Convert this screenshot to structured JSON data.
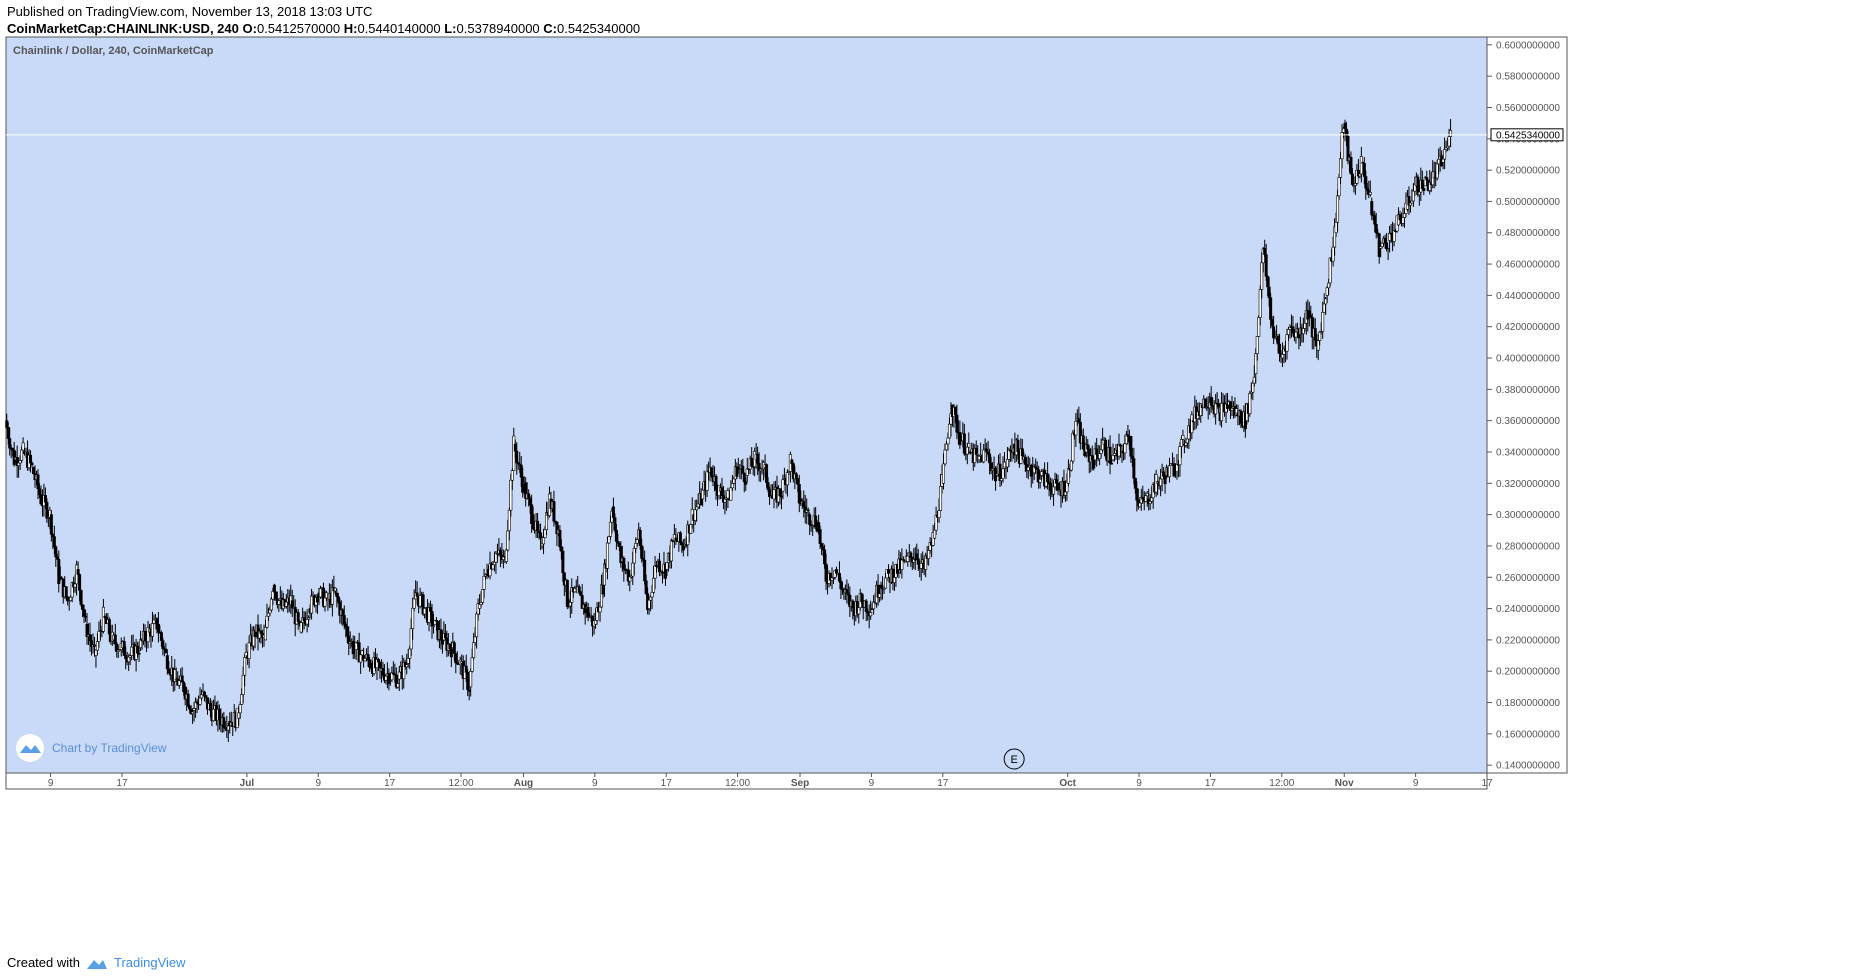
{
  "header": {
    "published": "Published on TradingView.com, November 13, 2018 13:03 UTC",
    "symbol": "CoinMarketCap:CHAINLINK:USD, 240",
    "o_label": "O:",
    "o_value": "0.5412570000",
    "h_label": "H:",
    "h_value": "0.5440140000",
    "l_label": "L:",
    "l_value": "0.5378940000",
    "c_label": "C:",
    "c_value": "0.5425340000"
  },
  "footer": {
    "created_with": "Created with",
    "brand": "TradingView"
  },
  "chart_data": {
    "type": "candlestick",
    "title": "Chainlink / Dollar, 240, CoinMarketCap",
    "watermark": "Chart by TradingView",
    "event_marker": "E",
    "colors": {
      "background": "#c9daf8",
      "candle": "#000000",
      "axis_text": "#555555",
      "border": "#555555",
      "price_line": "#ffffff"
    },
    "ylim": [
      0.135,
      0.605
    ],
    "y_ticks": [
      "0.1400000000",
      "0.1600000000",
      "0.1800000000",
      "0.2000000000",
      "0.2200000000",
      "0.2400000000",
      "0.2600000000",
      "0.2800000000",
      "0.3000000000",
      "0.3200000000",
      "0.3400000000",
      "0.3600000000",
      "0.3800000000",
      "0.4000000000",
      "0.4200000000",
      "0.4400000000",
      "0.4600000000",
      "0.4800000000",
      "0.5000000000",
      "0.5200000000",
      "0.5400000000",
      "0.5600000000",
      "0.5800000000",
      "0.6000000000"
    ],
    "last_price": 0.542534,
    "last_price_label": "0.5425340000",
    "x_range": [
      "2018-06-04",
      "2018-11-17"
    ],
    "x_ticks": [
      {
        "date": "2018-06-09",
        "label": "9",
        "bold": false
      },
      {
        "date": "2018-06-17",
        "label": "17",
        "bold": false
      },
      {
        "date": "2018-07-01",
        "label": "Jul",
        "bold": true
      },
      {
        "date": "2018-07-09",
        "label": "9",
        "bold": false
      },
      {
        "date": "2018-07-17",
        "label": "17",
        "bold": false
      },
      {
        "date": "2018-07-25",
        "label": "12:00",
        "bold": false
      },
      {
        "date": "2018-08-01",
        "label": "Aug",
        "bold": true
      },
      {
        "date": "2018-08-09",
        "label": "9",
        "bold": false
      },
      {
        "date": "2018-08-17",
        "label": "17",
        "bold": false
      },
      {
        "date": "2018-08-25",
        "label": "12:00",
        "bold": false
      },
      {
        "date": "2018-09-01",
        "label": "Sep",
        "bold": true
      },
      {
        "date": "2018-09-09",
        "label": "9",
        "bold": false
      },
      {
        "date": "2018-09-17",
        "label": "17",
        "bold": false
      },
      {
        "date": "2018-10-01",
        "label": "Oct",
        "bold": true
      },
      {
        "date": "2018-10-09",
        "label": "9",
        "bold": false
      },
      {
        "date": "2018-10-17",
        "label": "17",
        "bold": false
      },
      {
        "date": "2018-10-25",
        "label": "12:00",
        "bold": false
      },
      {
        "date": "2018-11-01",
        "label": "Nov",
        "bold": true
      },
      {
        "date": "2018-11-09",
        "label": "9",
        "bold": false
      },
      {
        "date": "2018-11-17",
        "label": "17",
        "bold": false
      }
    ],
    "event_marker_date": "2018-09-25",
    "series": [
      {
        "date": "2018-06-04",
        "close": 0.36
      },
      {
        "date": "2018-06-05",
        "close": 0.335
      },
      {
        "date": "2018-06-06",
        "close": 0.34
      },
      {
        "date": "2018-06-07",
        "close": 0.33
      },
      {
        "date": "2018-06-08",
        "close": 0.31
      },
      {
        "date": "2018-06-09",
        "close": 0.3
      },
      {
        "date": "2018-06-10",
        "close": 0.26
      },
      {
        "date": "2018-06-11",
        "close": 0.245
      },
      {
        "date": "2018-06-12",
        "close": 0.265
      },
      {
        "date": "2018-06-13",
        "close": 0.23
      },
      {
        "date": "2018-06-14",
        "close": 0.21
      },
      {
        "date": "2018-06-15",
        "close": 0.235
      },
      {
        "date": "2018-06-16",
        "close": 0.22
      },
      {
        "date": "2018-06-17",
        "close": 0.215
      },
      {
        "date": "2018-06-18",
        "close": 0.21
      },
      {
        "date": "2018-06-19",
        "close": 0.215
      },
      {
        "date": "2018-06-20",
        "close": 0.225
      },
      {
        "date": "2018-06-21",
        "close": 0.23
      },
      {
        "date": "2018-06-22",
        "close": 0.21
      },
      {
        "date": "2018-06-23",
        "close": 0.195
      },
      {
        "date": "2018-06-24",
        "close": 0.19
      },
      {
        "date": "2018-06-25",
        "close": 0.175
      },
      {
        "date": "2018-06-26",
        "close": 0.185
      },
      {
        "date": "2018-06-27",
        "close": 0.175
      },
      {
        "date": "2018-06-28",
        "close": 0.17
      },
      {
        "date": "2018-06-29",
        "close": 0.168
      },
      {
        "date": "2018-06-30",
        "close": 0.17
      },
      {
        "date": "2018-07-01",
        "close": 0.21
      },
      {
        "date": "2018-07-02",
        "close": 0.225
      },
      {
        "date": "2018-07-03",
        "close": 0.22
      },
      {
        "date": "2018-07-04",
        "close": 0.255
      },
      {
        "date": "2018-07-05",
        "close": 0.24
      },
      {
        "date": "2018-07-06",
        "close": 0.245
      },
      {
        "date": "2018-07-07",
        "close": 0.225
      },
      {
        "date": "2018-07-08",
        "close": 0.24
      },
      {
        "date": "2018-07-09",
        "close": 0.25
      },
      {
        "date": "2018-07-10",
        "close": 0.245
      },
      {
        "date": "2018-07-11",
        "close": 0.25
      },
      {
        "date": "2018-07-12",
        "close": 0.23
      },
      {
        "date": "2018-07-13",
        "close": 0.215
      },
      {
        "date": "2018-07-14",
        "close": 0.21
      },
      {
        "date": "2018-07-15",
        "close": 0.205
      },
      {
        "date": "2018-07-16",
        "close": 0.2
      },
      {
        "date": "2018-07-17",
        "close": 0.198
      },
      {
        "date": "2018-07-18",
        "close": 0.195
      },
      {
        "date": "2018-07-19",
        "close": 0.205
      },
      {
        "date": "2018-07-20",
        "close": 0.25
      },
      {
        "date": "2018-07-21",
        "close": 0.24
      },
      {
        "date": "2018-07-22",
        "close": 0.23
      },
      {
        "date": "2018-07-23",
        "close": 0.22
      },
      {
        "date": "2018-07-24",
        "close": 0.215
      },
      {
        "date": "2018-07-25",
        "close": 0.205
      },
      {
        "date": "2018-07-26",
        "close": 0.19
      },
      {
        "date": "2018-07-27",
        "close": 0.24
      },
      {
        "date": "2018-07-28",
        "close": 0.265
      },
      {
        "date": "2018-07-29",
        "close": 0.275
      },
      {
        "date": "2018-07-30",
        "close": 0.27
      },
      {
        "date": "2018-07-31",
        "close": 0.345
      },
      {
        "date": "2018-08-01",
        "close": 0.32
      },
      {
        "date": "2018-08-02",
        "close": 0.3
      },
      {
        "date": "2018-08-03",
        "close": 0.28
      },
      {
        "date": "2018-08-04",
        "close": 0.31
      },
      {
        "date": "2018-08-05",
        "close": 0.29
      },
      {
        "date": "2018-08-06",
        "close": 0.245
      },
      {
        "date": "2018-08-07",
        "close": 0.25
      },
      {
        "date": "2018-08-08",
        "close": 0.24
      },
      {
        "date": "2018-08-09",
        "close": 0.23
      },
      {
        "date": "2018-08-10",
        "close": 0.255
      },
      {
        "date": "2018-08-11",
        "close": 0.305
      },
      {
        "date": "2018-08-12",
        "close": 0.27
      },
      {
        "date": "2018-08-13",
        "close": 0.26
      },
      {
        "date": "2018-08-14",
        "close": 0.29
      },
      {
        "date": "2018-08-15",
        "close": 0.24
      },
      {
        "date": "2018-08-16",
        "close": 0.27
      },
      {
        "date": "2018-08-17",
        "close": 0.265
      },
      {
        "date": "2018-08-18",
        "close": 0.285
      },
      {
        "date": "2018-08-19",
        "close": 0.28
      },
      {
        "date": "2018-08-20",
        "close": 0.3
      },
      {
        "date": "2018-08-21",
        "close": 0.31
      },
      {
        "date": "2018-08-22",
        "close": 0.33
      },
      {
        "date": "2018-08-23",
        "close": 0.315
      },
      {
        "date": "2018-08-24",
        "close": 0.31
      },
      {
        "date": "2018-08-25",
        "close": 0.33
      },
      {
        "date": "2018-08-26",
        "close": 0.325
      },
      {
        "date": "2018-08-27",
        "close": 0.335
      },
      {
        "date": "2018-08-28",
        "close": 0.33
      },
      {
        "date": "2018-08-29",
        "close": 0.31
      },
      {
        "date": "2018-08-30",
        "close": 0.315
      },
      {
        "date": "2018-08-31",
        "close": 0.335
      },
      {
        "date": "2018-09-01",
        "close": 0.31
      },
      {
        "date": "2018-09-02",
        "close": 0.3
      },
      {
        "date": "2018-09-03",
        "close": 0.295
      },
      {
        "date": "2018-09-04",
        "close": 0.26
      },
      {
        "date": "2018-09-05",
        "close": 0.265
      },
      {
        "date": "2018-09-06",
        "close": 0.25
      },
      {
        "date": "2018-09-07",
        "close": 0.24
      },
      {
        "date": "2018-09-08",
        "close": 0.245
      },
      {
        "date": "2018-09-09",
        "close": 0.24
      },
      {
        "date": "2018-09-10",
        "close": 0.255
      },
      {
        "date": "2018-09-11",
        "close": 0.26
      },
      {
        "date": "2018-09-12",
        "close": 0.265
      },
      {
        "date": "2018-09-13",
        "close": 0.27
      },
      {
        "date": "2018-09-14",
        "close": 0.275
      },
      {
        "date": "2018-09-15",
        "close": 0.265
      },
      {
        "date": "2018-09-16",
        "close": 0.285
      },
      {
        "date": "2018-09-17",
        "close": 0.32
      },
      {
        "date": "2018-09-18",
        "close": 0.37
      },
      {
        "date": "2018-09-19",
        "close": 0.35
      },
      {
        "date": "2018-09-20",
        "close": 0.34
      },
      {
        "date": "2018-09-21",
        "close": 0.335
      },
      {
        "date": "2018-09-22",
        "close": 0.34
      },
      {
        "date": "2018-09-23",
        "close": 0.325
      },
      {
        "date": "2018-09-24",
        "close": 0.33
      },
      {
        "date": "2018-09-25",
        "close": 0.345
      },
      {
        "date": "2018-09-26",
        "close": 0.335
      },
      {
        "date": "2018-09-27",
        "close": 0.33
      },
      {
        "date": "2018-09-28",
        "close": 0.325
      },
      {
        "date": "2018-09-29",
        "close": 0.32
      },
      {
        "date": "2018-09-30",
        "close": 0.315
      },
      {
        "date": "2018-10-01",
        "close": 0.32
      },
      {
        "date": "2018-10-02",
        "close": 0.36
      },
      {
        "date": "2018-10-03",
        "close": 0.34
      },
      {
        "date": "2018-10-04",
        "close": 0.335
      },
      {
        "date": "2018-10-05",
        "close": 0.345
      },
      {
        "date": "2018-10-06",
        "close": 0.335
      },
      {
        "date": "2018-10-07",
        "close": 0.34
      },
      {
        "date": "2018-10-08",
        "close": 0.35
      },
      {
        "date": "2018-10-09",
        "close": 0.305
      },
      {
        "date": "2018-10-10",
        "close": 0.31
      },
      {
        "date": "2018-10-11",
        "close": 0.32
      },
      {
        "date": "2018-10-12",
        "close": 0.325
      },
      {
        "date": "2018-10-13",
        "close": 0.33
      },
      {
        "date": "2018-10-14",
        "close": 0.345
      },
      {
        "date": "2018-10-15",
        "close": 0.36
      },
      {
        "date": "2018-10-16",
        "close": 0.37
      },
      {
        "date": "2018-10-17",
        "close": 0.375
      },
      {
        "date": "2018-10-18",
        "close": 0.365
      },
      {
        "date": "2018-10-19",
        "close": 0.37
      },
      {
        "date": "2018-10-20",
        "close": 0.365
      },
      {
        "date": "2018-10-21",
        "close": 0.36
      },
      {
        "date": "2018-10-22",
        "close": 0.39
      },
      {
        "date": "2018-10-23",
        "close": 0.47
      },
      {
        "date": "2018-10-24",
        "close": 0.42
      },
      {
        "date": "2018-10-25",
        "close": 0.4
      },
      {
        "date": "2018-10-26",
        "close": 0.42
      },
      {
        "date": "2018-10-27",
        "close": 0.415
      },
      {
        "date": "2018-10-28",
        "close": 0.43
      },
      {
        "date": "2018-10-29",
        "close": 0.405
      },
      {
        "date": "2018-10-30",
        "close": 0.44
      },
      {
        "date": "2018-10-31",
        "close": 0.48
      },
      {
        "date": "2018-11-01",
        "close": 0.55
      },
      {
        "date": "2018-11-02",
        "close": 0.51
      },
      {
        "date": "2018-11-03",
        "close": 0.525
      },
      {
        "date": "2018-11-04",
        "close": 0.5
      },
      {
        "date": "2018-11-05",
        "close": 0.47
      },
      {
        "date": "2018-11-06",
        "close": 0.475
      },
      {
        "date": "2018-11-07",
        "close": 0.485
      },
      {
        "date": "2018-11-08",
        "close": 0.495
      },
      {
        "date": "2018-11-09",
        "close": 0.51
      },
      {
        "date": "2018-11-10",
        "close": 0.51
      },
      {
        "date": "2018-11-11",
        "close": 0.515
      },
      {
        "date": "2018-11-12",
        "close": 0.525
      },
      {
        "date": "2018-11-13",
        "close": 0.5425
      }
    ]
  }
}
